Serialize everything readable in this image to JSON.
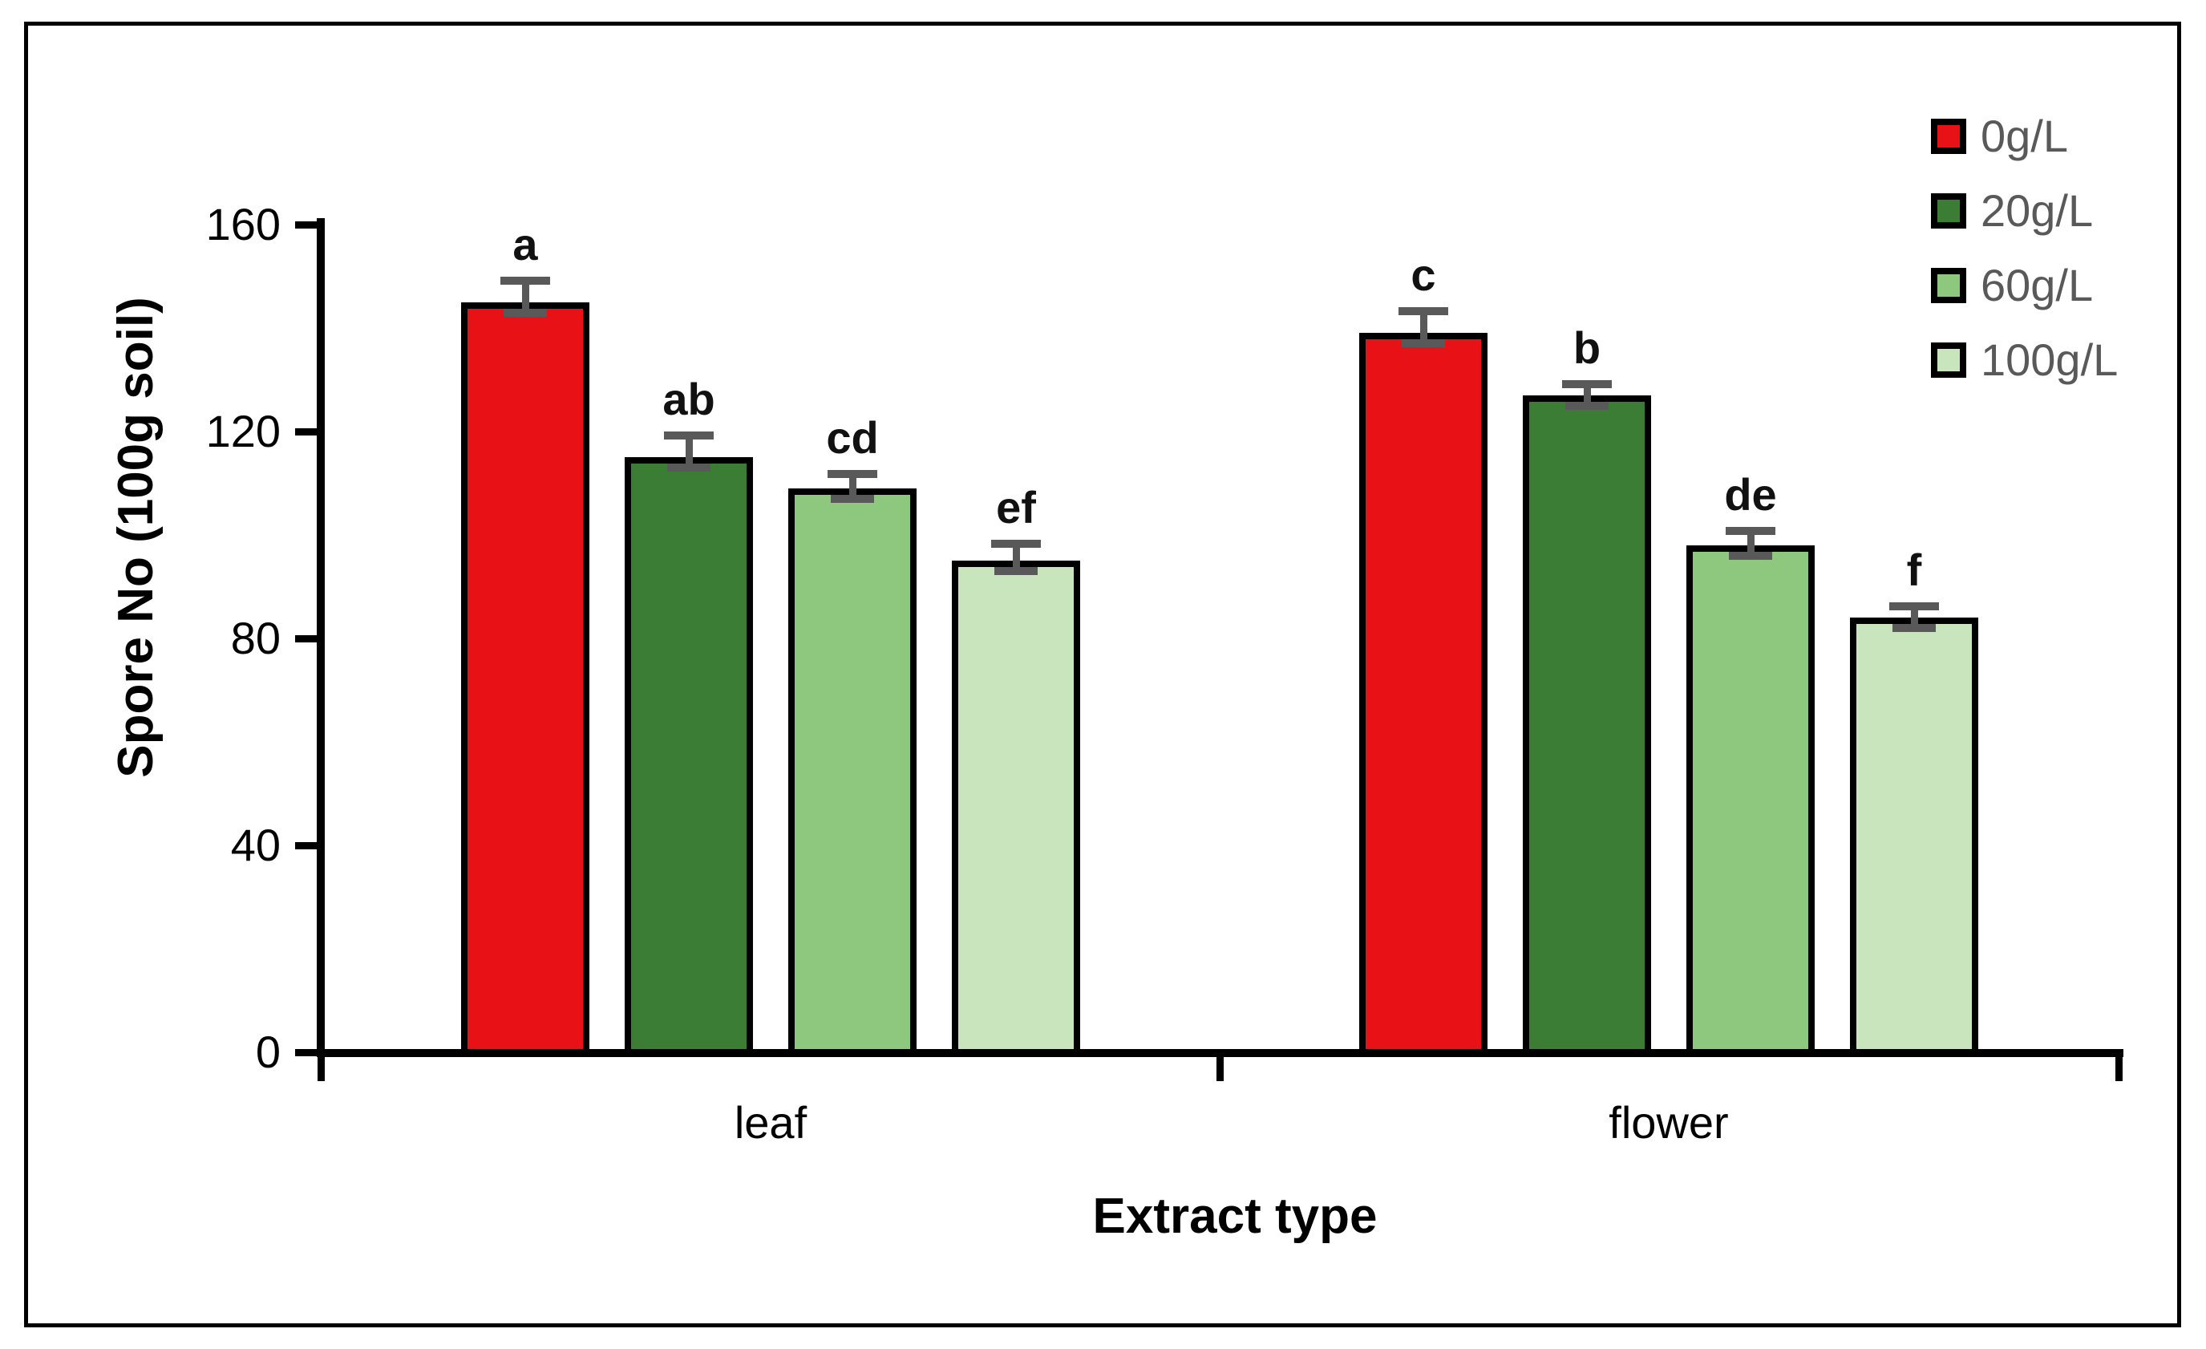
{
  "chart_data": {
    "type": "bar",
    "title": "",
    "xlabel": "Extract type",
    "ylabel": "Spore No (100g soil)",
    "ylim": [
      0,
      160
    ],
    "yticks": [
      0,
      40,
      80,
      120,
      160
    ],
    "categories": [
      "leaf",
      "flower"
    ],
    "series": [
      {
        "name": "0g/L",
        "color": "#e81115",
        "values": [
          145,
          139
        ],
        "errors": [
          5,
          5
        ],
        "letters": [
          "a",
          "c"
        ]
      },
      {
        "name": "20g/L",
        "color": "#3b7d35",
        "values": [
          115,
          127
        ],
        "errors": [
          5,
          3
        ],
        "letters": [
          "ab",
          "b"
        ]
      },
      {
        "name": "60g/L",
        "color": "#8dc87e",
        "values": [
          109,
          98
        ],
        "errors": [
          3.5,
          3.5
        ],
        "letters": [
          "cd",
          "de"
        ]
      },
      {
        "name": "100g/L",
        "color": "#c9e5be",
        "values": [
          95,
          84
        ],
        "errors": [
          4,
          3
        ],
        "letters": [
          "ef",
          "f"
        ]
      }
    ],
    "error_bar_color": "#595959",
    "legend_position": "top-right",
    "legend_text_color": "#595959",
    "grid": false
  }
}
